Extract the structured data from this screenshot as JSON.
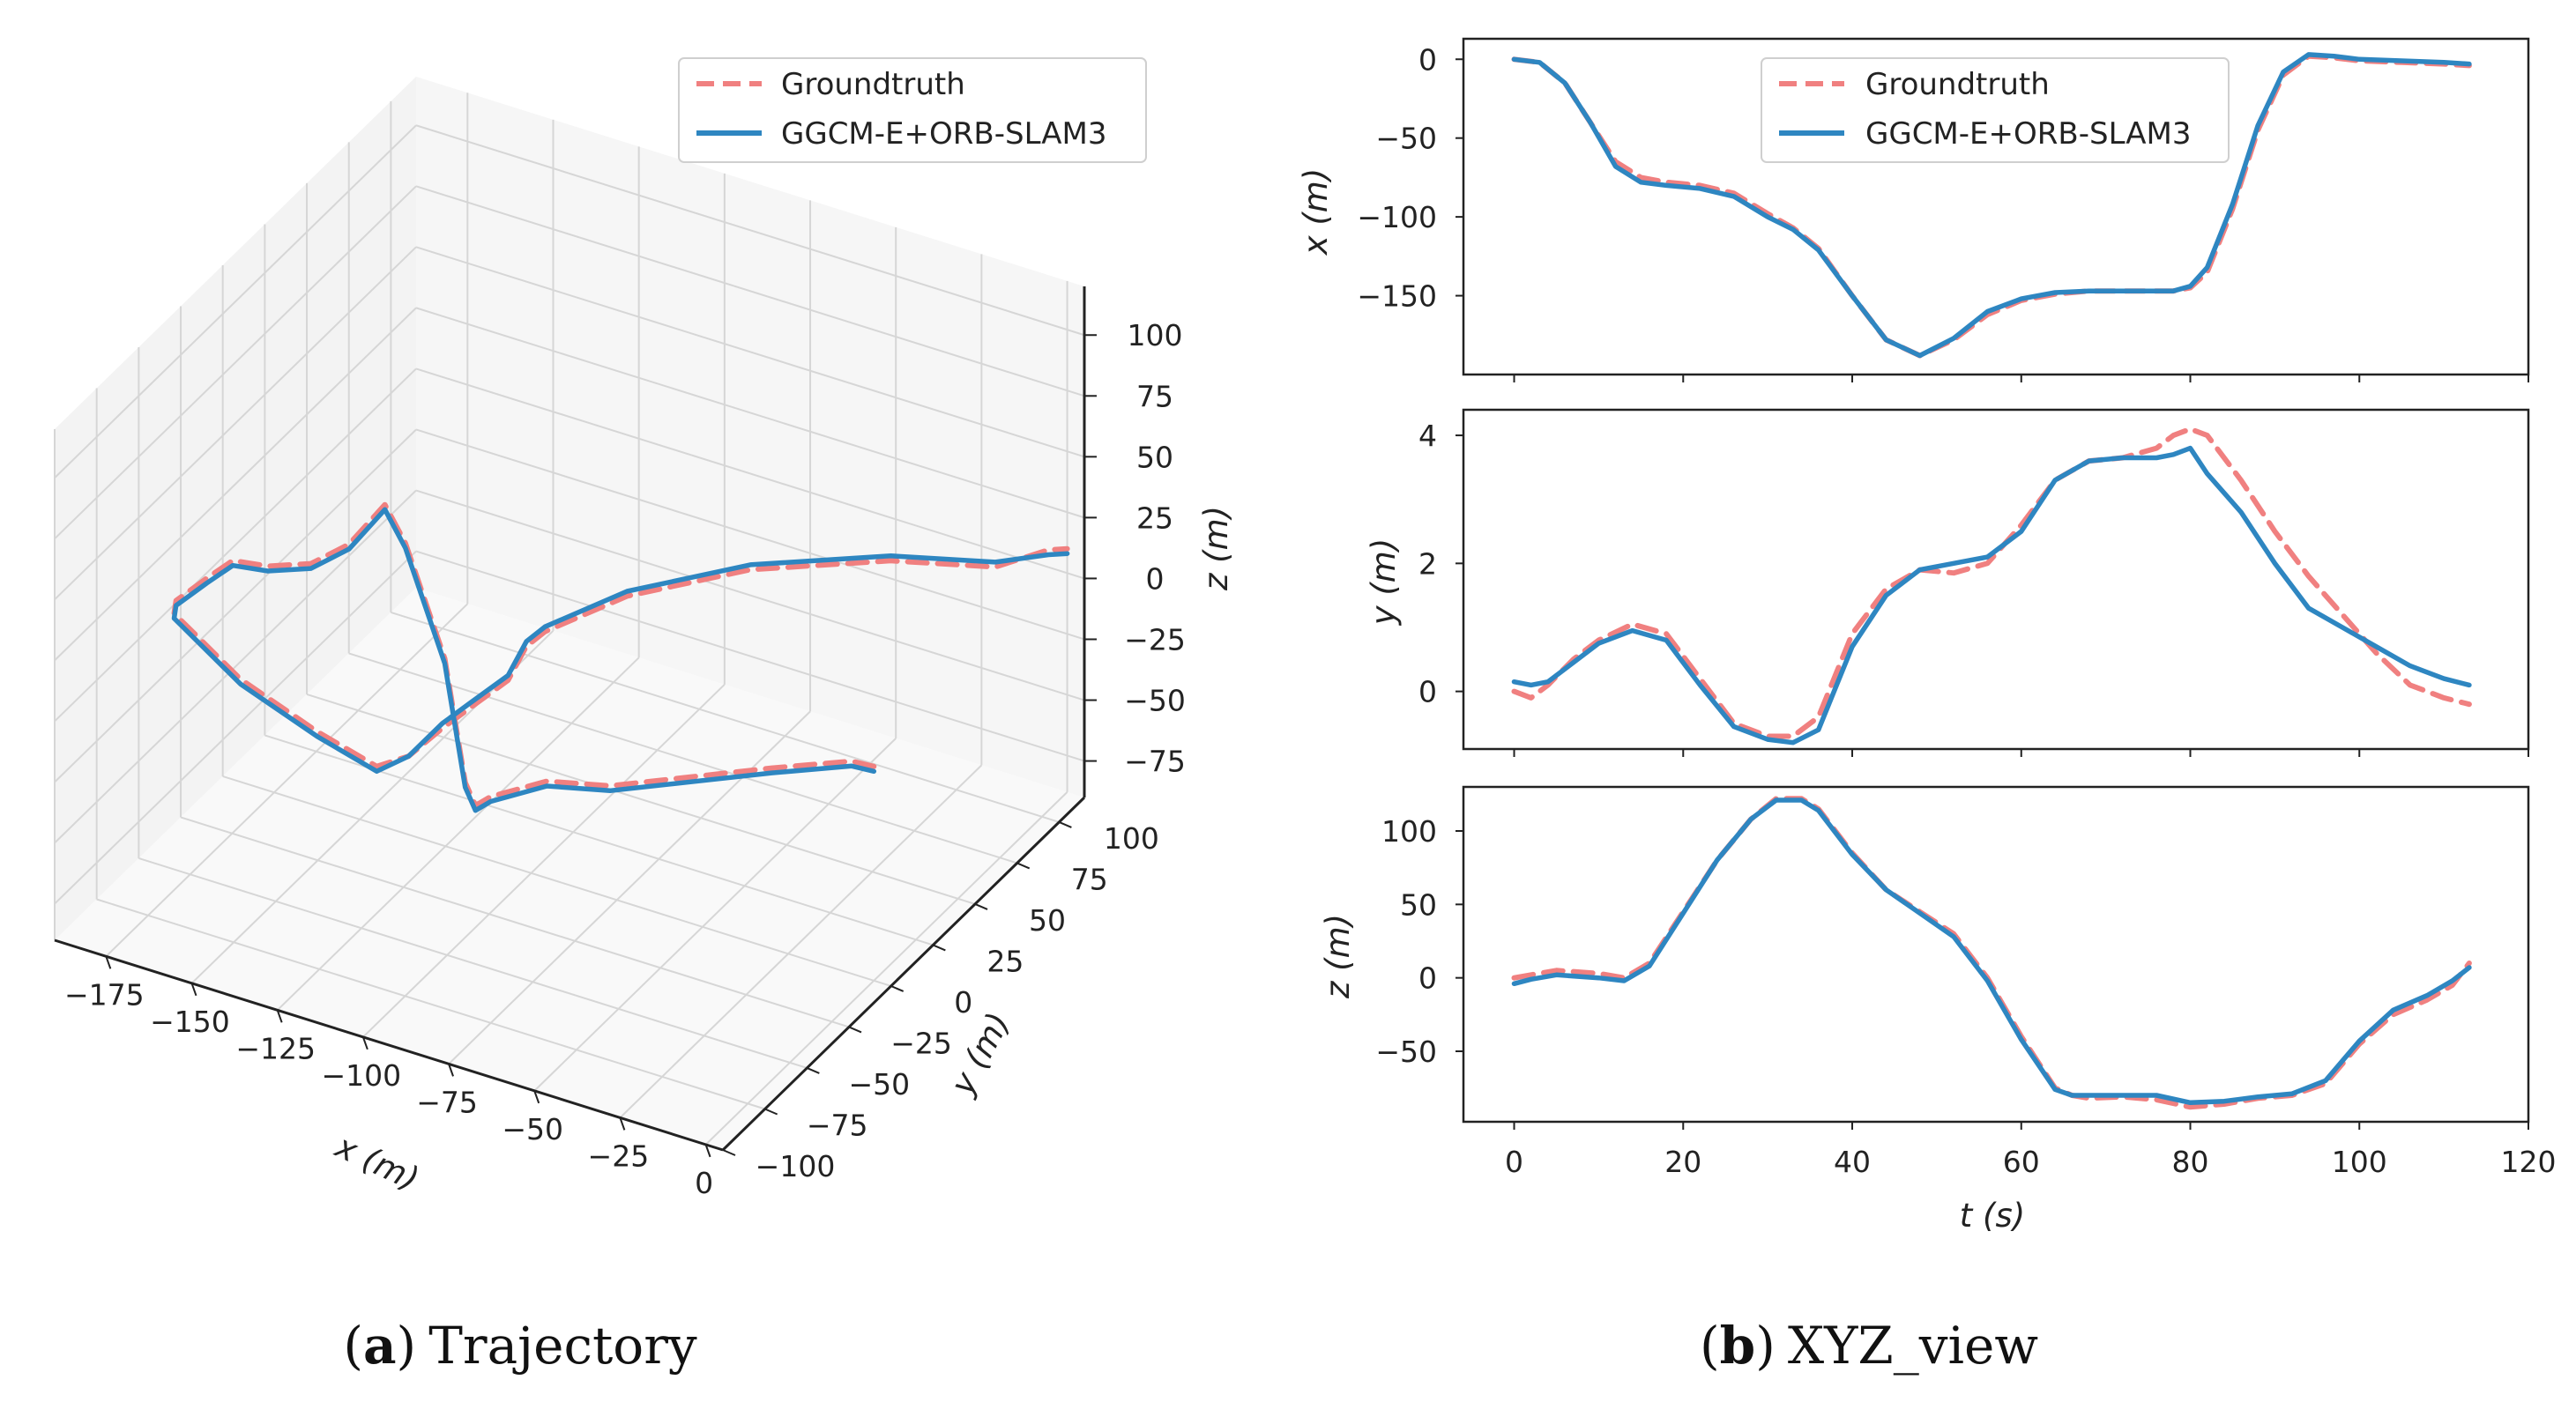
{
  "chart_data": [
    {
      "type": "line3d",
      "panel_id": "(a)",
      "caption_label": "a",
      "caption_text": "Trajectory",
      "xlabel": "x (m)",
      "ylabel": "y (m)",
      "zlabel": "z (m)",
      "xlim": [
        -190,
        5
      ],
      "ylim": [
        -100,
        115
      ],
      "zlim": [
        -90,
        120
      ],
      "xticks": [
        -175,
        -150,
        -125,
        -100,
        -75,
        -50,
        -25,
        0
      ],
      "yticks": [
        -100,
        -75,
        -50,
        -25,
        0,
        25,
        50,
        75,
        100
      ],
      "zticks": [
        -75,
        -50,
        -25,
        0,
        25,
        50,
        75,
        100
      ],
      "legend": [
        "Groundtruth",
        "GGCM-E+ORB-SLAM3"
      ],
      "series": [
        {
          "name": "Groundtruth",
          "color": "#f08080",
          "style": "dashed",
          "points": [
            [
              0,
              0,
              -2
            ],
            [
              -5,
              -3,
              0
            ],
            [
              -20,
              -20,
              2
            ],
            [
              -50,
              -55,
              5
            ],
            [
              -65,
              -62,
              5
            ],
            [
              -75,
              -75,
              3
            ],
            [
              -78,
              -78,
              0
            ],
            [
              -80,
              -80,
              10
            ],
            [
              -85,
              -82,
              60
            ],
            [
              -95,
              -85,
              105
            ],
            [
              -100,
              -87,
              120
            ],
            [
              -110,
              -88,
              100
            ],
            [
              -125,
              -80,
              80
            ],
            [
              -145,
              -65,
              60
            ],
            [
              -165,
              -45,
              40
            ],
            [
              -175,
              -40,
              25
            ],
            [
              -185,
              -38,
              10
            ],
            [
              -188,
              -33,
              0
            ],
            [
              -175,
              -20,
              -30
            ],
            [
              -160,
              -5,
              -55
            ],
            [
              -150,
              10,
              -75
            ],
            [
              -148,
              25,
              -80
            ],
            [
              -148,
              45,
              -82
            ],
            [
              -147,
              60,
              -83
            ],
            [
              -146,
              80,
              -85
            ],
            [
              -148,
              95,
              -82
            ],
            [
              -145,
              100,
              -78
            ],
            [
              -125,
              108,
              -60
            ],
            [
              -90,
              110,
              -35
            ],
            [
              -50,
              112,
              -15
            ],
            [
              -20,
              113,
              -5
            ],
            [
              -5,
              114,
              8
            ],
            [
              0,
              115,
              10
            ]
          ]
        },
        {
          "name": "GGCM-E+ORB-SLAM3",
          "color": "#2e86c1",
          "style": "solid",
          "points": [
            [
              0,
              0,
              -4
            ],
            [
              -5,
              -3,
              -2
            ],
            [
              -20,
              -20,
              0
            ],
            [
              -50,
              -55,
              3
            ],
            [
              -65,
              -62,
              3
            ],
            [
              -75,
              -75,
              1
            ],
            [
              -78,
              -78,
              -2
            ],
            [
              -80,
              -80,
              8
            ],
            [
              -85,
              -82,
              58
            ],
            [
              -95,
              -85,
              103
            ],
            [
              -100,
              -87,
              118
            ],
            [
              -110,
              -88,
              98
            ],
            [
              -125,
              -80,
              78
            ],
            [
              -145,
              -65,
              58
            ],
            [
              -165,
              -45,
              38
            ],
            [
              -175,
              -40,
              23
            ],
            [
              -185,
              -38,
              8
            ],
            [
              -188,
              -33,
              -2
            ],
            [
              -175,
              -20,
              -32
            ],
            [
              -160,
              -5,
              -57
            ],
            [
              -150,
              10,
              -77
            ],
            [
              -148,
              25,
              -80
            ],
            [
              -148,
              45,
              -80
            ],
            [
              -147,
              60,
              -81
            ],
            [
              -146,
              80,
              -83
            ],
            [
              -148,
              95,
              -80
            ],
            [
              -145,
              100,
              -76
            ],
            [
              -125,
              108,
              -58
            ],
            [
              -90,
              110,
              -33
            ],
            [
              -50,
              112,
              -13
            ],
            [
              -20,
              113,
              -3
            ],
            [
              -5,
              114,
              6
            ],
            [
              0,
              115,
              8
            ]
          ]
        }
      ]
    },
    {
      "type": "line",
      "panel_id": "(b)",
      "caption_label": "b",
      "caption_text": "XYZ_view",
      "xlabel": "t (s)",
      "xlim": [
        -6,
        120
      ],
      "xticks": [
        0,
        20,
        40,
        60,
        80,
        100,
        120
      ],
      "legend": [
        "Groundtruth",
        "GGCM-E+ORB-SLAM3"
      ],
      "subplots": [
        {
          "ylabel": "x (m)",
          "ylim": [
            -200,
            13
          ],
          "yticks": [
            0,
            -50,
            -100,
            -150
          ],
          "series": [
            {
              "name": "Groundtruth",
              "color": "#f08080",
              "style": "dashed",
              "x": [
                0,
                3,
                6,
                9,
                12,
                15,
                18,
                22,
                26,
                30,
                33,
                36,
                40,
                44,
                48,
                52,
                56,
                60,
                64,
                68,
                72,
                76,
                78,
                80,
                82,
                85,
                88,
                91,
                94,
                97,
                100,
                105,
                110,
                113
              ],
              "y": [
                0,
                -2,
                -15,
                -40,
                -65,
                -75,
                -78,
                -80,
                -85,
                -98,
                -107,
                -120,
                -150,
                -178,
                -188,
                -178,
                -162,
                -153,
                -149,
                -147,
                -147,
                -147,
                -147,
                -145,
                -135,
                -95,
                -45,
                -10,
                2,
                1,
                -1,
                -2,
                -3,
                -4
              ]
            },
            {
              "name": "GGCM-E+ORB-SLAM3",
              "color": "#2e86c1",
              "style": "solid",
              "x": [
                0,
                3,
                6,
                9,
                12,
                15,
                18,
                22,
                26,
                30,
                33,
                36,
                40,
                44,
                48,
                52,
                56,
                60,
                64,
                68,
                72,
                76,
                78,
                80,
                82,
                85,
                88,
                91,
                94,
                97,
                100,
                105,
                110,
                113
              ],
              "y": [
                0,
                -2,
                -15,
                -40,
                -68,
                -78,
                -80,
                -82,
                -87,
                -100,
                -108,
                -121,
                -150,
                -178,
                -188,
                -177,
                -160,
                -152,
                -148,
                -147,
                -147,
                -147,
                -147,
                -144,
                -132,
                -92,
                -42,
                -8,
                3,
                2,
                0,
                -1,
                -2,
                -3
              ]
            }
          ]
        },
        {
          "ylabel": "y (m)",
          "ylim": [
            -0.9,
            4.4
          ],
          "yticks": [
            4,
            2,
            0
          ],
          "series": [
            {
              "name": "Groundtruth",
              "color": "#f08080",
              "style": "dashed",
              "x": [
                0,
                2,
                4,
                7,
                10,
                14,
                18,
                22,
                26,
                30,
                33,
                36,
                40,
                44,
                48,
                52,
                56,
                60,
                64,
                68,
                72,
                76,
                78,
                80,
                82,
                86,
                90,
                94,
                98,
                102,
                106,
                110,
                113
              ],
              "y": [
                0,
                -0.1,
                0.1,
                0.5,
                0.8,
                1.05,
                0.9,
                0.2,
                -0.5,
                -0.7,
                -0.7,
                -0.4,
                0.9,
                1.6,
                1.9,
                1.85,
                2.0,
                2.6,
                3.3,
                3.6,
                3.65,
                3.8,
                4.0,
                4.1,
                4.0,
                3.3,
                2.5,
                1.8,
                1.2,
                0.6,
                0.1,
                -0.1,
                -0.2
              ]
            },
            {
              "name": "GGCM-E+ORB-SLAM3",
              "color": "#2e86c1",
              "style": "solid",
              "x": [
                0,
                2,
                4,
                7,
                10,
                14,
                18,
                22,
                26,
                30,
                33,
                36,
                40,
                44,
                48,
                52,
                56,
                60,
                64,
                68,
                72,
                76,
                78,
                80,
                82,
                86,
                90,
                94,
                98,
                102,
                106,
                110,
                113
              ],
              "y": [
                0.15,
                0.1,
                0.15,
                0.45,
                0.75,
                0.95,
                0.8,
                0.1,
                -0.55,
                -0.75,
                -0.8,
                -0.6,
                0.7,
                1.5,
                1.9,
                2.0,
                2.1,
                2.5,
                3.3,
                3.6,
                3.65,
                3.65,
                3.7,
                3.8,
                3.4,
                2.8,
                2.0,
                1.3,
                1.0,
                0.7,
                0.4,
                0.2,
                0.1
              ]
            }
          ]
        },
        {
          "ylabel": "z (m)",
          "ylim": [
            -98,
            130
          ],
          "yticks": [
            100,
            50,
            0,
            -50
          ],
          "series": [
            {
              "name": "Groundtruth",
              "color": "#f08080",
              "style": "dashed",
              "x": [
                0,
                2,
                5,
                10,
                13,
                16,
                20,
                24,
                28,
                31,
                34,
                36,
                40,
                44,
                48,
                52,
                56,
                60,
                64,
                66,
                68,
                72,
                76,
                80,
                84,
                88,
                92,
                96,
                100,
                104,
                108,
                111,
                113
              ],
              "y": [
                0,
                2,
                5,
                3,
                0,
                10,
                45,
                80,
                108,
                122,
                122,
                115,
                85,
                60,
                45,
                30,
                0,
                -40,
                -75,
                -80,
                -82,
                -81,
                -83,
                -88,
                -86,
                -82,
                -80,
                -72,
                -45,
                -25,
                -15,
                -5,
                10
              ]
            },
            {
              "name": "GGCM-E+ORB-SLAM3",
              "color": "#2e86c1",
              "style": "solid",
              "x": [
                0,
                2,
                5,
                10,
                13,
                16,
                20,
                24,
                28,
                31,
                34,
                36,
                40,
                44,
                48,
                52,
                56,
                60,
                64,
                66,
                68,
                72,
                76,
                80,
                84,
                88,
                92,
                96,
                100,
                104,
                108,
                111,
                113
              ],
              "y": [
                -4,
                -1,
                2,
                0,
                -2,
                8,
                44,
                80,
                108,
                121,
                121,
                114,
                84,
                60,
                44,
                28,
                -2,
                -42,
                -76,
                -80,
                -80,
                -80,
                -80,
                -85,
                -84,
                -81,
                -79,
                -70,
                -43,
                -22,
                -12,
                -2,
                7
              ]
            }
          ]
        }
      ]
    }
  ]
}
